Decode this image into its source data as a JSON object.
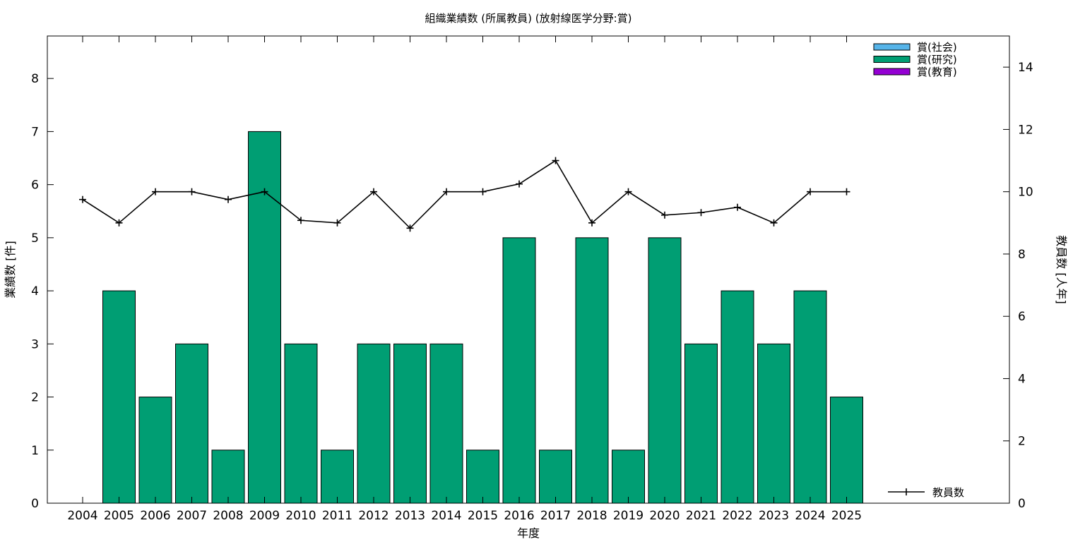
{
  "chart_data": {
    "type": "bar",
    "title": "組織業績数 (所属教員) (放射線医学分野:賞)",
    "xlabel": "年度",
    "ylabel": "業績数 [件]",
    "y2label": "教員数 [人年]",
    "categories": [
      "2004",
      "2005",
      "2006",
      "2007",
      "2008",
      "2009",
      "2010",
      "2011",
      "2012",
      "2013",
      "2014",
      "2015",
      "2016",
      "2017",
      "2018",
      "2019",
      "2020",
      "2021",
      "2022",
      "2023",
      "2024",
      "2025"
    ],
    "ylim": [
      0,
      8.8
    ],
    "y2lim": [
      0,
      15
    ],
    "yticks": [
      0,
      1,
      2,
      3,
      4,
      5,
      6,
      7,
      8
    ],
    "y2ticks": [
      0,
      2,
      4,
      6,
      8,
      10,
      12,
      14
    ],
    "stacked": true,
    "legend_position": "top-right",
    "grid": false,
    "series": [
      {
        "name": "賞(社会)",
        "color": "#56b4e9",
        "values": [
          0,
          0,
          0,
          0,
          0,
          0,
          0,
          0,
          0,
          0,
          0,
          0,
          0,
          0,
          0,
          0,
          0,
          0,
          0,
          0,
          0,
          0
        ]
      },
      {
        "name": "賞(研究)",
        "color": "#009e73",
        "values": [
          0,
          4,
          2,
          3,
          1,
          7,
          3,
          1,
          3,
          3,
          3,
          1,
          5,
          1,
          5,
          1,
          5,
          3,
          4,
          3,
          4,
          2
        ]
      },
      {
        "name": "賞(教育)",
        "color": "#9400d3",
        "values": [
          0,
          0,
          0,
          0,
          0,
          0,
          0,
          0,
          0,
          0,
          0,
          0,
          0,
          0,
          0,
          0,
          0,
          0,
          0,
          0,
          0,
          0
        ]
      }
    ],
    "line_series": {
      "name": "教員数",
      "color": "#000000",
      "axis": "y2",
      "legend_position": "bottom-right",
      "values": [
        9.75,
        9.0,
        10.0,
        10.0,
        9.75,
        10.0,
        9.08,
        9.0,
        10.0,
        8.83,
        10.0,
        10.0,
        10.25,
        11.0,
        9.0,
        10.0,
        9.25,
        9.33,
        9.5,
        9.0,
        10.0,
        10.0
      ]
    }
  }
}
